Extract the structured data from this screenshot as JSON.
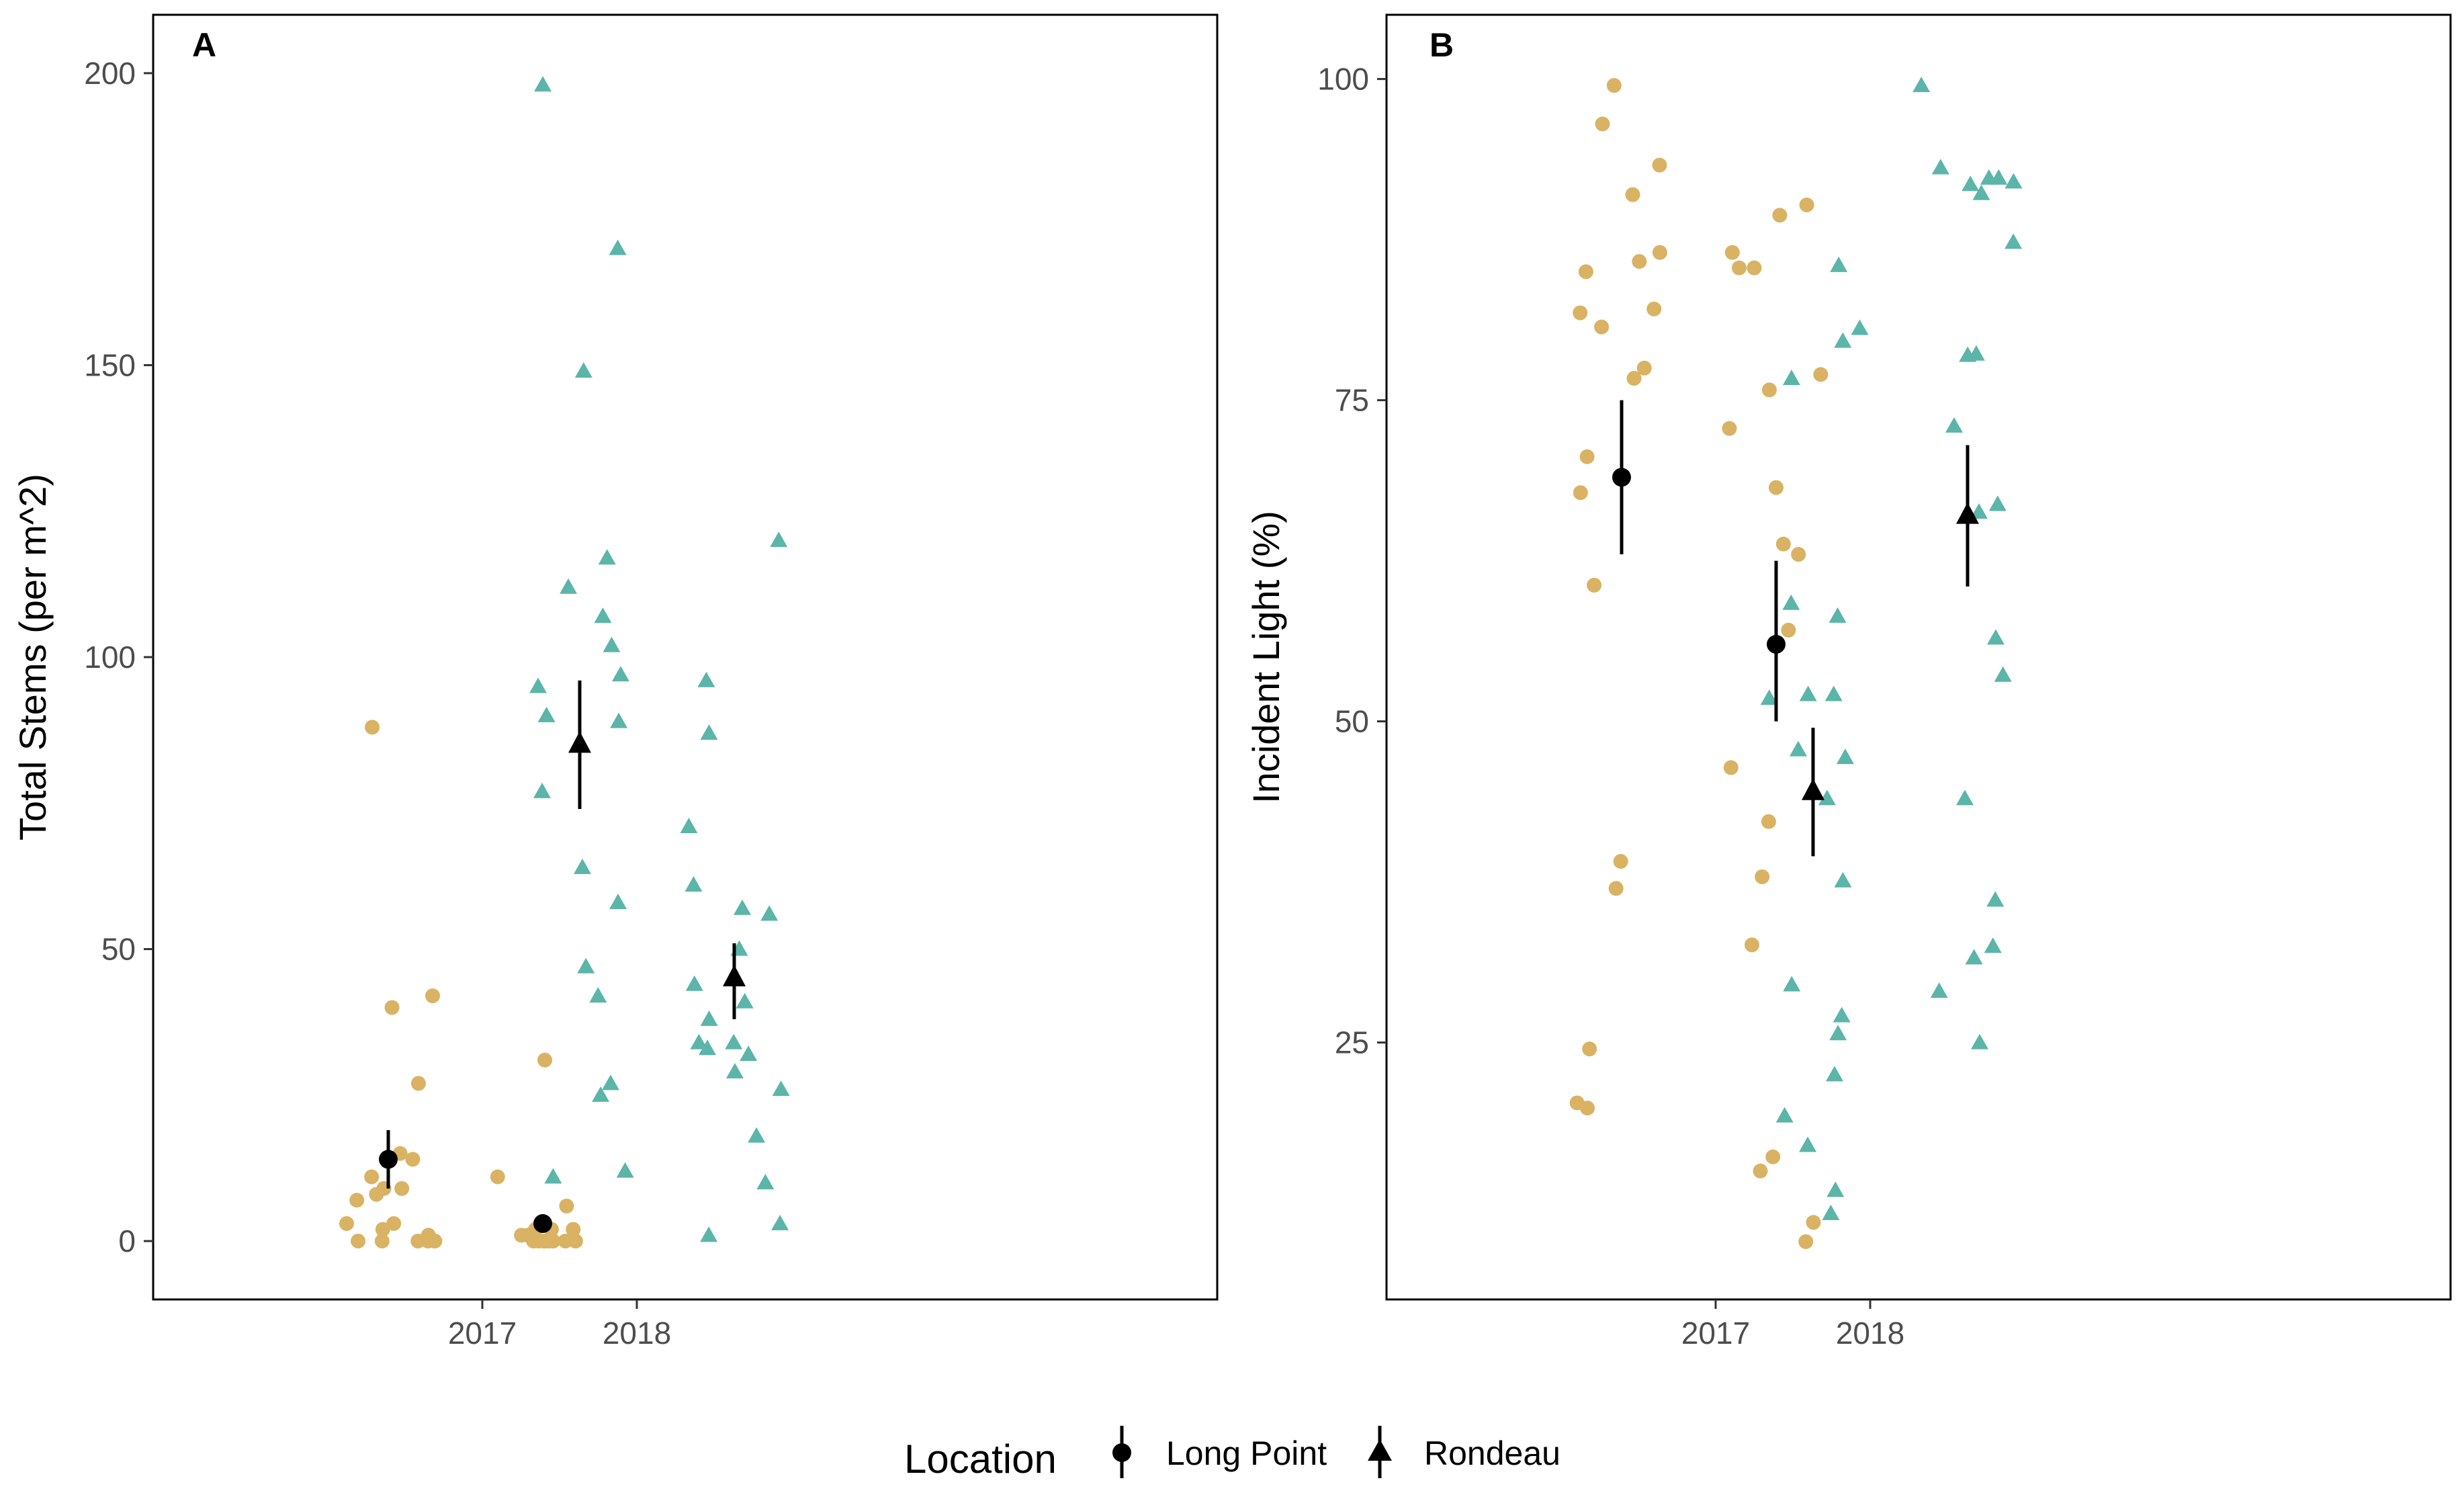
{
  "colors": {
    "long_point": "#D9B263",
    "rondeau": "#5BB5A9",
    "summary": "#000000"
  },
  "legend": {
    "title": "Location",
    "items": [
      {
        "label": "Long Point",
        "shape": "circle"
      },
      {
        "label": "Rondeau",
        "shape": "triangle"
      }
    ],
    "placement": "bottom"
  },
  "chart_data": [
    {
      "type": "scatter",
      "panel": "A",
      "xlabel": "",
      "ylabel": "Total Stems (per m^2)",
      "categories": [
        "2017",
        "2018"
      ],
      "ylim": [
        -10,
        210
      ],
      "yticks": [
        0,
        50,
        100,
        150,
        200
      ],
      "grid": false,
      "series": [
        {
          "name": "Long Point",
          "shape": "circle",
          "points": [
            {
              "x": "2017",
              "y": [
                0,
                3,
                3,
                8,
                9,
                15,
                7,
                88,
                40,
                42,
                27,
                0,
                0,
                0,
                2,
                1,
                0,
                9,
                11,
                14
              ]
            },
            {
              "x": "2018",
              "y": [
                0,
                0,
                0,
                1,
                2,
                6,
                0,
                0,
                31,
                11,
                2,
                0,
                0,
                0,
                1,
                2
              ]
            }
          ],
          "summary": [
            {
              "x": "2017",
              "mean": 14,
              "lower": 9,
              "upper": 19
            },
            {
              "x": "2018",
              "mean": 3,
              "lower": 2,
              "upper": 4
            }
          ]
        },
        {
          "name": "Rondeau",
          "shape": "triangle",
          "points": [
            {
              "x": "2017",
              "y": [
                198,
                170,
                149,
                117,
                112,
                107,
                95,
                102,
                97,
                90,
                89,
                77,
                64,
                58,
                47,
                42,
                27,
                25,
                12,
                11
              ]
            },
            {
              "x": "2018",
              "y": [
                120,
                96,
                87,
                71,
                61,
                57,
                56,
                50,
                44,
                41,
                38,
                34,
                34,
                33,
                32,
                29,
                26,
                18,
                10,
                3,
                1
              ]
            }
          ],
          "summary": [
            {
              "x": "2017",
              "mean": 85,
              "lower": 74,
              "upper": 96
            },
            {
              "x": "2018",
              "mean": 45,
              "lower": 38,
              "upper": 51
            }
          ]
        }
      ]
    },
    {
      "type": "scatter",
      "panel": "B",
      "xlabel": "",
      "ylabel": "Incident Light (%)",
      "categories": [
        "2017",
        "2018"
      ],
      "ylim": [
        5,
        105
      ],
      "yticks": [
        25,
        50,
        75,
        100
      ],
      "grid": false,
      "series": [
        {
          "name": "Long Point",
          "shape": "circle",
          "points": [
            {
              "x": "2017",
              "y": [
                99.5,
                96.5,
                93.3,
                91,
                86.5,
                85.8,
                85,
                82.1,
                81.8,
                80.7,
                77.5,
                76.7,
                70.6,
                67.8,
                60.6,
                39.1,
                37,
                24.5,
                20.3,
                19.9
              ]
            },
            {
              "x": "2018",
              "y": [
                90.2,
                89.4,
                86.5,
                85.3,
                85.3,
                77,
                75.8,
                72.8,
                68.2,
                63.8,
                63,
                57.1,
                46.4,
                42.2,
                37.9,
                32.6,
                16.1,
                15,
                11,
                9.5
              ]
            }
          ],
          "summary": [
            {
              "x": "2017",
              "mean": 69,
              "lower": 63,
              "upper": 75
            },
            {
              "x": "2018",
              "mean": 56,
              "lower": 50,
              "upper": 62.5
            }
          ]
        },
        {
          "name": "Rondeau",
          "shape": "triangle",
          "points": [
            {
              "x": "2017",
              "y": [
                85.5,
                80.6,
                79.6,
                76.7,
                59.2,
                58.2,
                52.1,
                52.1,
                51.8,
                47.8,
                47.2,
                44,
                37.6,
                29.5,
                27.1,
                25.7,
                22.5,
                19.3,
                17,
                13.5,
                11.7
              ]
            },
            {
              "x": "2018",
              "y": [
                99.5,
                93.1,
                92.3,
                92.3,
                92,
                91.8,
                91.1,
                87.3,
                78.6,
                78.5,
                73,
                66.9,
                66.3,
                56.5,
                53.6,
                44,
                36.1,
                32.5,
                31.6,
                29,
                25
              ]
            }
          ],
          "summary": [
            {
              "x": "2017",
              "mean": 44.5,
              "lower": 39.5,
              "upper": 49.5
            },
            {
              "x": "2018",
              "mean": 66,
              "lower": 60.5,
              "upper": 71.5
            }
          ]
        }
      ]
    }
  ]
}
